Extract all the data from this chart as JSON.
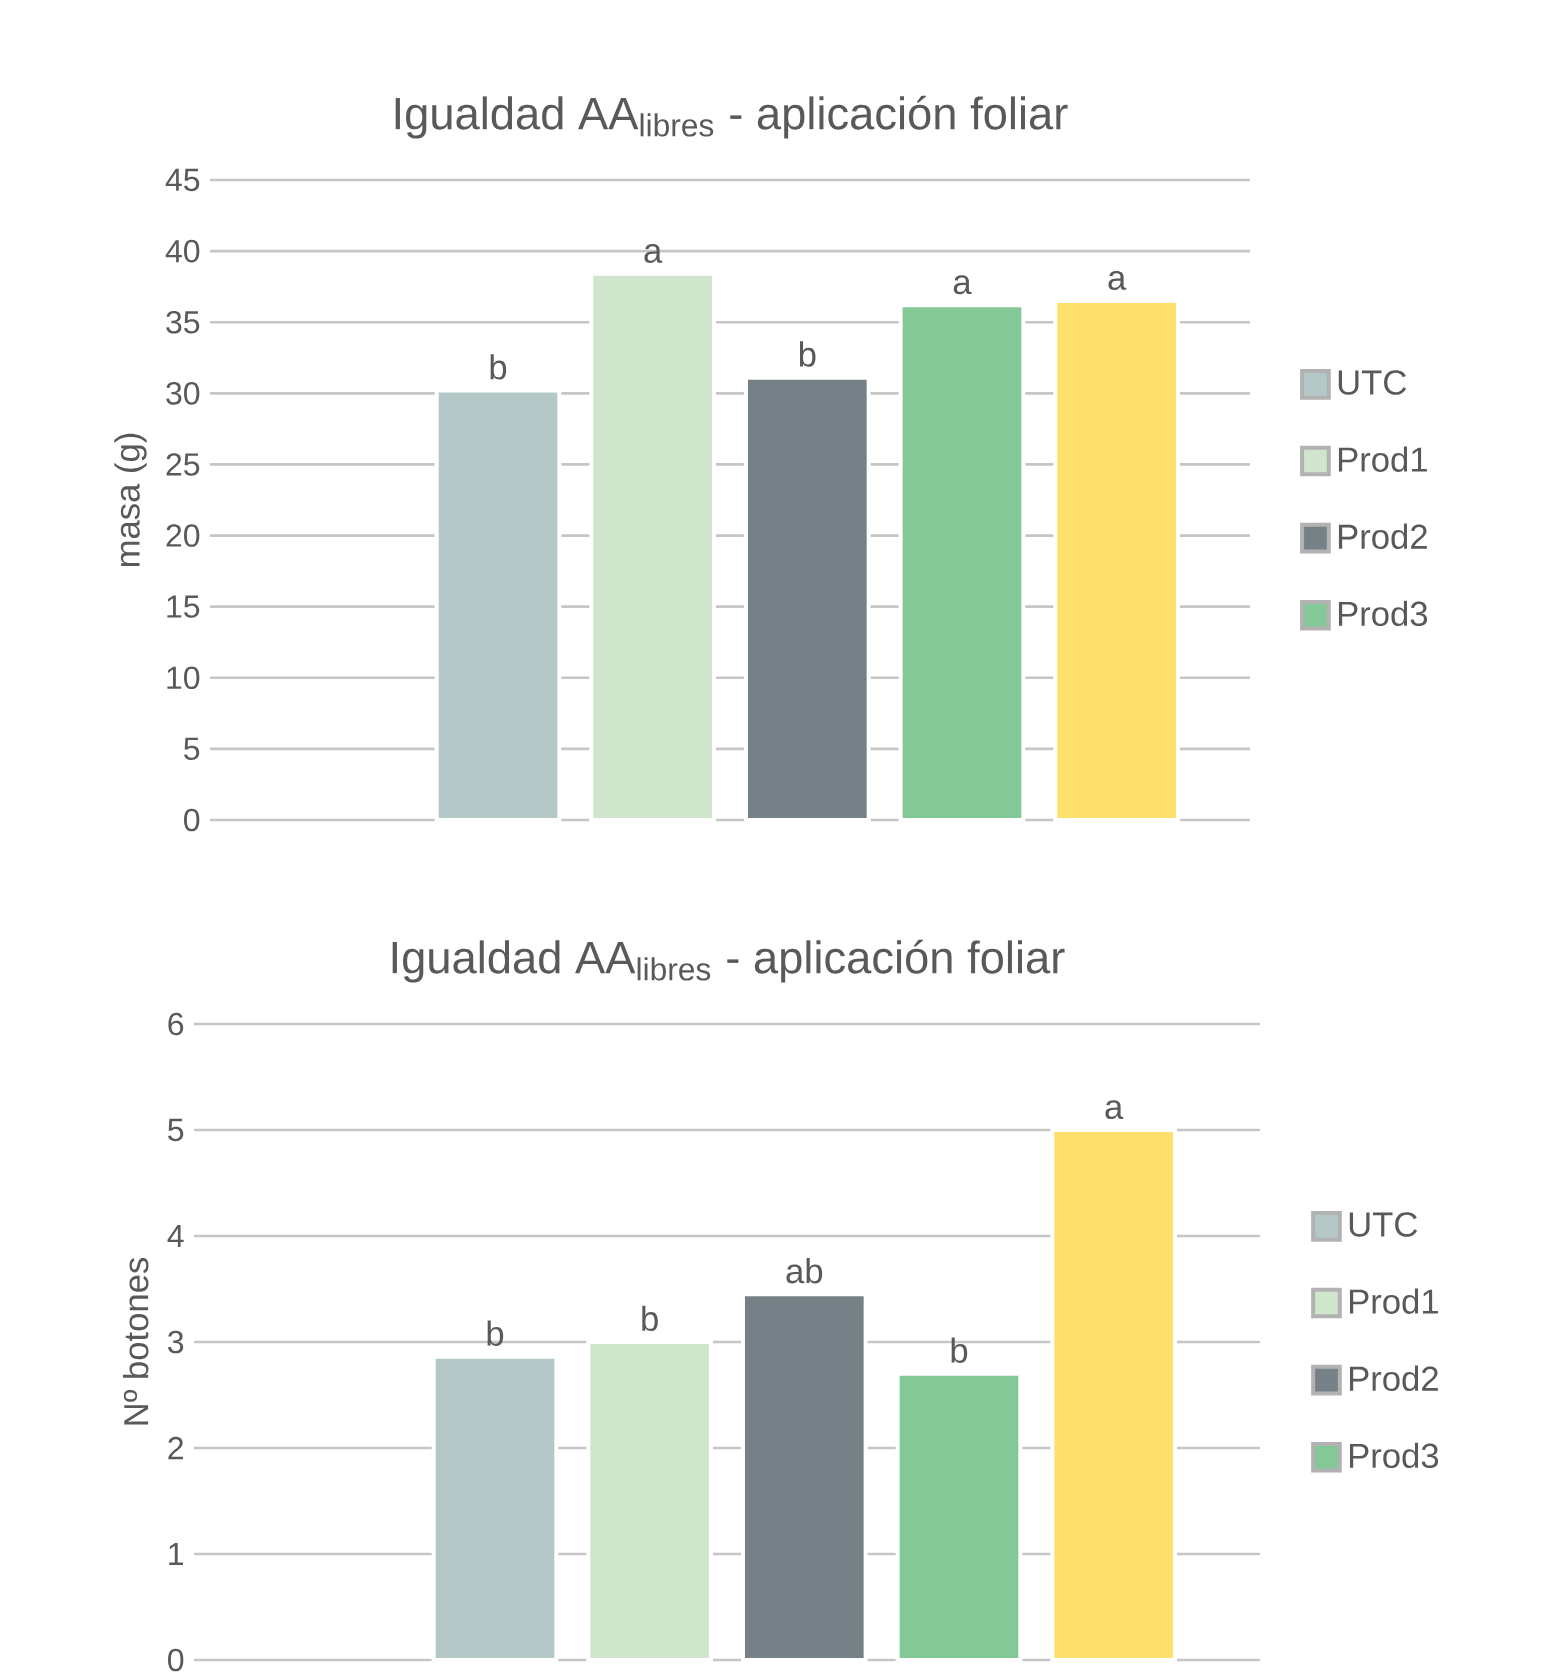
{
  "chart_data": [
    {
      "type": "bar",
      "title": "Igualdad AA$_{libres}$ - aplicación foliar",
      "ylabel": "masa (g)",
      "categories": [
        null
      ],
      "ylim": [
        0,
        45
      ],
      "yticks": [
        0,
        5,
        10,
        15,
        20,
        25,
        30,
        35,
        40,
        45
      ],
      "grid": "y",
      "legend": "right",
      "series": [
        {
          "name": "UTC",
          "color": "#b4c8c8",
          "values": [
            30.2
          ],
          "value_labels": [
            "b"
          ]
        },
        {
          "name": "Prod1",
          "color": "#d0e6cc",
          "values": [
            38.4
          ],
          "value_labels": [
            "a"
          ]
        },
        {
          "name": "Prod2",
          "color": "#758087",
          "values": [
            31.1
          ],
          "value_labels": [
            "b"
          ]
        },
        {
          "name": "Prod3",
          "color": "#84c897",
          "values": [
            36.2
          ],
          "value_labels": [
            "a"
          ]
        },
        {
          "color": "#ffdf6c",
          "values": [
            36.5
          ],
          "value_labels": [
            "a"
          ]
        }
      ]
    },
    {
      "type": "bar",
      "title": "Igualdad AA$_{libres}$ - aplicación foliar",
      "ylabel": "Nº botones",
      "categories": [
        null
      ],
      "ylim": [
        0,
        6
      ],
      "yticks": [
        0,
        1,
        2,
        3,
        4,
        5,
        6
      ],
      "grid": "y",
      "legend": "right",
      "series": [
        {
          "name": "UTC",
          "color": "#b4c8c8",
          "values": [
            2.86
          ],
          "value_labels": [
            "b"
          ]
        },
        {
          "name": "Prod1",
          "color": "#d0e6cc",
          "values": [
            3.0
          ],
          "value_labels": [
            "b"
          ]
        },
        {
          "name": "Prod2",
          "color": "#758087",
          "values": [
            3.45
          ],
          "value_labels": [
            "ab"
          ]
        },
        {
          "name": "Prod3",
          "color": "#84c897",
          "values": [
            2.7
          ],
          "value_labels": [
            "b"
          ]
        },
        {
          "color": "#ffdf6c",
          "values": [
            5.0
          ],
          "value_labels": [
            "a"
          ]
        }
      ]
    }
  ]
}
